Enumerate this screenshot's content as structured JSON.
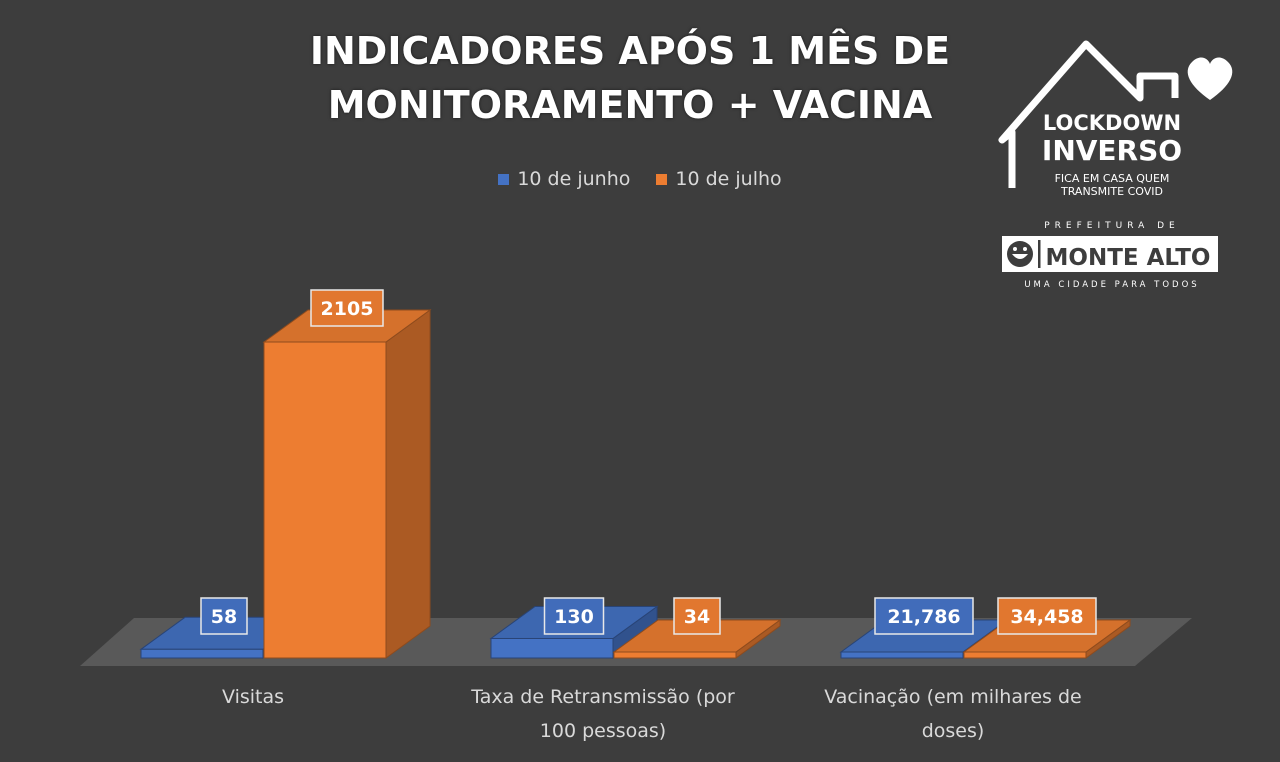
{
  "chart_data": {
    "type": "bar",
    "title": "INDICADORES APÓS 1 MÊS DE MONITORAMENTO + VACINA",
    "title_lines": [
      "INDICADORES APÓS 1 MÊS DE",
      "MONITORAMENTO + VACINA"
    ],
    "categories": [
      "Visitas",
      "Taxa de Retransmissão (por 100 pessoas)",
      "Vacinação (em milhares de doses)"
    ],
    "category_lines": [
      [
        "Visitas"
      ],
      [
        "Taxa de Retransmissão (por",
        "100 pessoas)"
      ],
      [
        "Vacinação (em milhares de",
        "doses)"
      ]
    ],
    "series": [
      {
        "name": "10 de junho",
        "values": [
          58,
          130,
          21.786
        ],
        "labels": [
          "58",
          "130",
          "21,786"
        ],
        "color": "#4472c4"
      },
      {
        "name": "10 de julho",
        "values": [
          2105,
          34,
          34.458
        ],
        "labels": [
          "2105",
          "34",
          "34,458"
        ],
        "color": "#ed7d31"
      }
    ],
    "ylim": [
      0,
      2300
    ],
    "xlabel": "",
    "ylabel": "",
    "grid": false,
    "legend_position": "top",
    "style": "3d-column"
  },
  "logo": {
    "line1": "LOCKDOWN",
    "line2": "INVERSO",
    "tagline1": "FICA EM CASA QUEM",
    "tagline2": "TRANSMITE COVID",
    "prefeitura": "PREFEITURA DE",
    "city": "MONTE ALTO",
    "motto": "UMA CIDADE PARA TODOS"
  },
  "colors": {
    "background": "#3d3d3d",
    "floor": "#595959",
    "text": "#d9d9d9"
  }
}
